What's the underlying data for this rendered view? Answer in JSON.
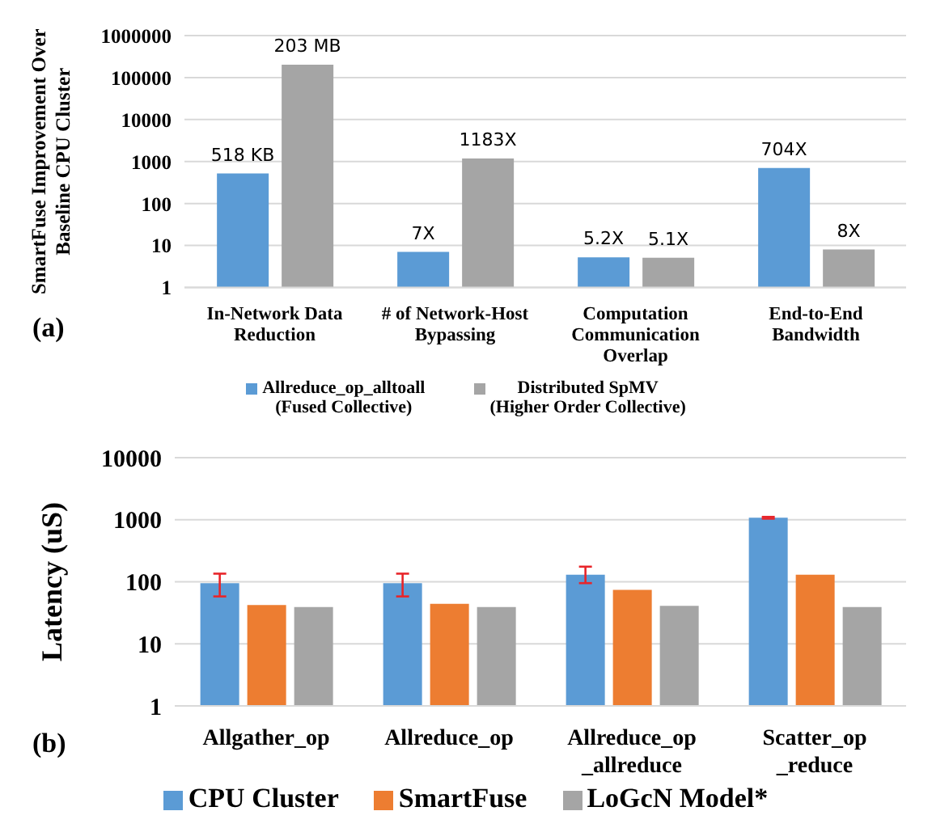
{
  "chart_data": [
    {
      "type": "bar",
      "ylabel": "SmartFuse Improvement Over Baseline CPU Cluster",
      "categories": [
        "In-Network Data Reduction",
        "# of Network-Host Bypassing",
        "Computation Communication Overlap",
        "End-to-End Bandwidth"
      ],
      "series": [
        {
          "name": "Allreduce_op_alltoall (Fused Collective)",
          "color": "#5b9bd5",
          "values": [
            518,
            7,
            5.2,
            704
          ],
          "value_labels": [
            null,
            "7X",
            "5.2X",
            "704X"
          ]
        },
        {
          "name": "Distributed SpMV (Higher Order Collective)",
          "color": "#a5a5a5",
          "values": [
            203000,
            1183,
            5.1,
            8
          ],
          "value_labels": [
            null,
            "1183X",
            "5.1X",
            "8X"
          ]
        }
      ],
      "log": "y",
      "ylim": [
        1,
        1000000
      ],
      "yticks": [
        1,
        10,
        100,
        1000,
        10000,
        100000,
        1000000
      ],
      "grid": "y",
      "legend": "bottom",
      "annotations": [
        "(a)",
        {
          "text": "518 KB",
          "x": "In-Network Data Reduction",
          "y": 518
        },
        {
          "text": "203 MB",
          "x": "In-Network Data Reduction",
          "y": 203000
        }
      ]
    },
    {
      "type": "bar",
      "ylabel": "Latency (uS)",
      "categories": [
        "Allgather_op",
        "Allreduce_op",
        "Allreduce_op_allreduce",
        "Scatter_op_reduce"
      ],
      "series": [
        {
          "name": "CPU Cluster",
          "color": "#5b9bd5",
          "values": [
            95,
            95,
            130,
            1080
          ],
          "errors": [
            [
              58,
              135
            ],
            [
              58,
              135
            ],
            [
              95,
              175
            ],
            [
              1040,
              1110
            ]
          ]
        },
        {
          "name": "SmartFuse",
          "color": "#ed7d31",
          "values": [
            42,
            44,
            74,
            130
          ]
        },
        {
          "name": "LoGcN Model*",
          "color": "#a5a5a5",
          "values": [
            39,
            39,
            41,
            39
          ]
        }
      ],
      "log": "y",
      "ylim": [
        1,
        10000
      ],
      "yticks": [
        1,
        10,
        100,
        1000,
        10000
      ],
      "grid": "y",
      "legend": "bottom",
      "annotations": [
        "(b)"
      ]
    }
  ]
}
